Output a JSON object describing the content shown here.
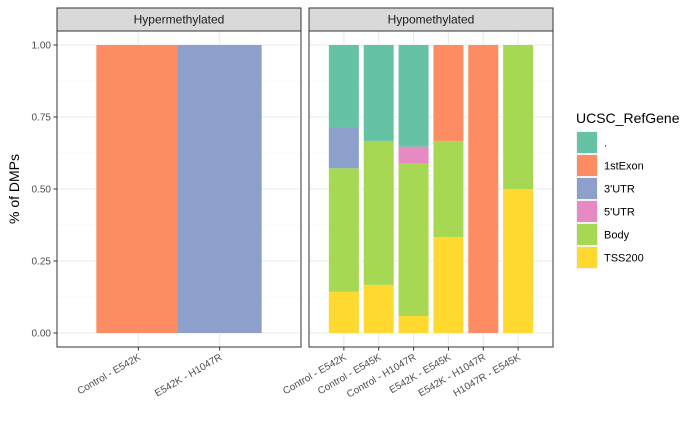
{
  "chart_data": {
    "type": "bar",
    "stacked": true,
    "ylabel": "% of DMPs",
    "xlabel": "",
    "ylim": [
      0,
      1
    ],
    "yticks": [
      "0.00",
      "0.25",
      "0.50",
      "0.75",
      "1.00"
    ],
    "grid": true,
    "legend": {
      "title": "UCSC_RefGene",
      "position": "right",
      "entries": [
        {
          "label": ".",
          "color": "#66c2a5"
        },
        {
          "label": "1stExon",
          "color": "#fc8d62"
        },
        {
          "label": "3'UTR",
          "color": "#8da0cb"
        },
        {
          "label": "5'UTR",
          "color": "#e78ac3"
        },
        {
          "label": "Body",
          "color": "#a6d854"
        },
        {
          "label": "TSS200",
          "color": "#ffd92f"
        }
      ]
    },
    "panels": [
      {
        "title": "Hypermethylated",
        "categories": [
          "Control - E542K",
          "E542K - H1047R"
        ],
        "bars": [
          {
            "category": "Control - E542K",
            "segments": {
              "1stExon": 1.0
            }
          },
          {
            "category": "E542K - H1047R",
            "segments": {
              "3'UTR": 1.0
            }
          }
        ]
      },
      {
        "title": "Hypomethylated",
        "categories": [
          "Control - E542K",
          "Control - E545K",
          "Control - H1047R",
          "E542K - E545K",
          "E542K - H1047R",
          "H1047R - E545K"
        ],
        "bars": [
          {
            "category": "Control - E542K",
            "segments": {
              "TSS200": 0.143,
              "Body": 0.429,
              "3'UTR": 0.143,
              ".": 0.285
            }
          },
          {
            "category": "Control - E545K",
            "segments": {
              "TSS200": 0.167,
              "Body": 0.5,
              ".": 0.333
            }
          },
          {
            "category": "Control - H1047R",
            "segments": {
              "TSS200": 0.059,
              "Body": 0.529,
              "5'UTR": 0.059,
              ".": 0.353
            }
          },
          {
            "category": "E542K - E545K",
            "segments": {
              "TSS200": 0.333,
              "Body": 0.334,
              "1stExon": 0.333
            }
          },
          {
            "category": "E542K - H1047R",
            "segments": {
              "1stExon": 1.0
            }
          },
          {
            "category": "H1047R - E545K",
            "segments": {
              "TSS200": 0.5,
              "Body": 0.5
            }
          }
        ]
      }
    ]
  }
}
